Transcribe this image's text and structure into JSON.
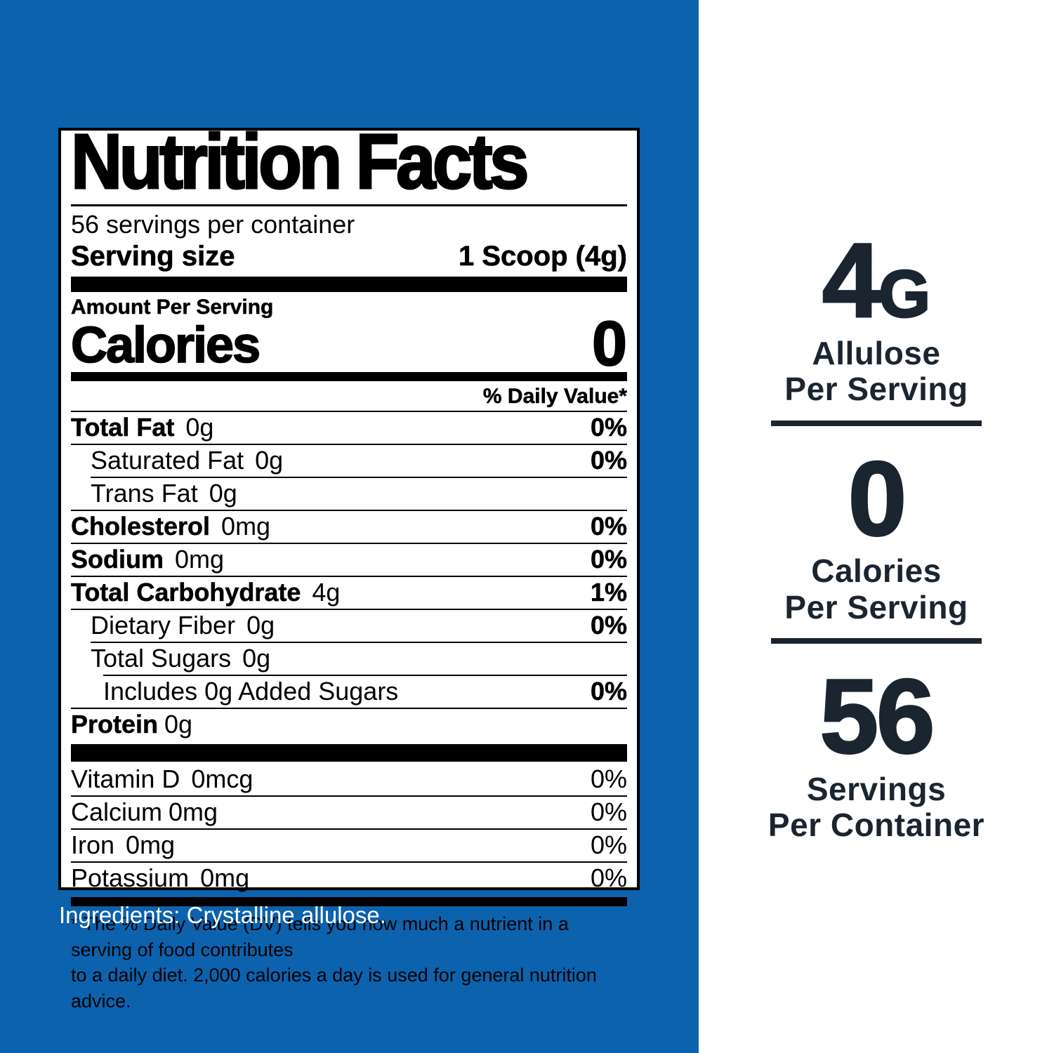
{
  "colors": {
    "background_blue": "#0c62ad",
    "highlight_navy": "#1b2530",
    "label_background": "#ffffff",
    "label_text": "#000000",
    "ingredients_text": "#ffffff"
  },
  "label": {
    "title": "Nutrition Facts",
    "servings_per_container": "56 servings per container",
    "serving_size_label": "Serving size",
    "serving_size_value": "1 Scoop (4g)",
    "amount_per_serving": "Amount Per Serving",
    "calories_label": "Calories",
    "calories_value": "0",
    "daily_value_header": "% Daily Value*",
    "rows": [
      {
        "name": "Total Fat",
        "amount": "0g",
        "pct": "0%"
      },
      {
        "name": "Saturated Fat",
        "amount": "0g",
        "pct": "0%"
      },
      {
        "name": "Trans Fat",
        "amount": "0g",
        "pct": ""
      },
      {
        "name": "Cholesterol",
        "amount": "0mg",
        "pct": "0%"
      },
      {
        "name": "Sodium",
        "amount": "0mg",
        "pct": "0%"
      },
      {
        "name": "Total Carbohydrate",
        "amount": "4g",
        "pct": "1%"
      },
      {
        "name": "Dietary Fiber",
        "amount": "0g",
        "pct": "0%"
      },
      {
        "name": "Total Sugars",
        "amount": "0g",
        "pct": ""
      },
      {
        "name": "Includes 0g Added Sugars",
        "amount": "",
        "pct": "0%"
      },
      {
        "name": "Protein",
        "amount": "0g",
        "pct": ""
      }
    ],
    "vitamins": [
      {
        "name": "Vitamin D",
        "amount": "0mcg",
        "pct": "0%"
      },
      {
        "name": "Calcium",
        "amount": "0mg",
        "pct": "0%"
      },
      {
        "name": "Iron",
        "amount": "0mg",
        "pct": "0%"
      },
      {
        "name": "Potassium",
        "amount": "0mg",
        "pct": "0%"
      }
    ],
    "footnote_line1": "* The % Daily Value (DV) tells you how much a nutrient in a serving of food contributes",
    "footnote_line2": "to a daily diet. 2,000 calories a day is used for general nutrition advice."
  },
  "ingredients": "Ingredients: Crystalline allulose.",
  "highlights": [
    {
      "value": "4",
      "suffix": "G",
      "line1": "Allulose",
      "line2": "Per Serving"
    },
    {
      "value": "0",
      "suffix": "",
      "line1": "Calories",
      "line2": "Per Serving"
    },
    {
      "value": "56",
      "suffix": "",
      "line1": "Servings",
      "line2": "Per Container"
    }
  ]
}
